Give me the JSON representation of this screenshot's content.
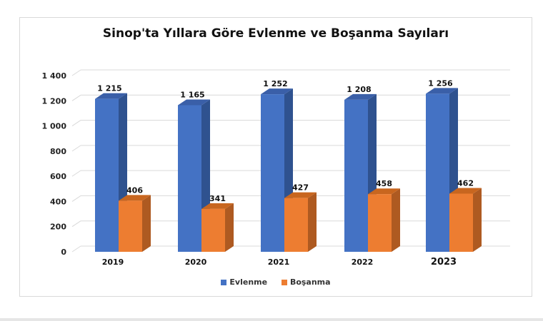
{
  "chart_data": {
    "type": "bar",
    "title": "Sinop'ta Yıllara Göre Evlenme ve Boşanma Sayıları",
    "categories": [
      "2019",
      "2020",
      "2021",
      "2022",
      "2023"
    ],
    "series": [
      {
        "name": "Evlenme",
        "values": [
          1215,
          1165,
          1252,
          1208,
          1256
        ],
        "labels": [
          "1 215",
          "1 165",
          "1 252",
          "1 208",
          "1 256"
        ],
        "color": "#4472c4"
      },
      {
        "name": "Boşanma",
        "values": [
          406,
          341,
          427,
          458,
          462
        ],
        "labels": [
          "406",
          "341",
          "427",
          "458",
          "462"
        ],
        "color": "#ed7d31"
      }
    ],
    "xlabel": "",
    "ylabel": "",
    "ylim": [
      0,
      1400
    ],
    "yticks": [
      "0",
      "200",
      "400",
      "600",
      "800",
      "1 000",
      "1 200",
      "1 400"
    ],
    "grid": true,
    "legend_position": "bottom",
    "style": "3d-clustered-column"
  },
  "legend": {
    "evlenme": "Evlenme",
    "bosanma": "Boşanma"
  }
}
